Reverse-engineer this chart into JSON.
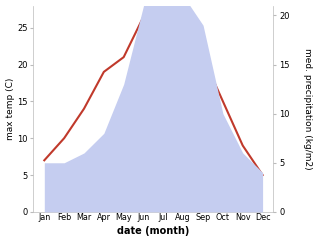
{
  "months": [
    "Jan",
    "Feb",
    "Mar",
    "Apr",
    "May",
    "Jun",
    "Jul",
    "Aug",
    "Sep",
    "Oct",
    "Nov",
    "Dec"
  ],
  "temp": [
    7,
    10,
    14,
    19,
    21,
    26.5,
    27,
    26,
    21,
    15,
    9,
    5
  ],
  "precip": [
    5,
    5,
    6,
    8,
    13,
    21,
    22,
    22,
    19,
    10,
    6,
    4
  ],
  "temp_color": "#c0392b",
  "precip_fill_color": "#c5cdf0",
  "ylabel_left": "max temp (C)",
  "ylabel_right": "med. precipitation (kg/m2)",
  "xlabel": "date (month)",
  "ylim_left": [
    0,
    28
  ],
  "ylim_right": [
    0,
    21
  ],
  "yticks_left": [
    0,
    5,
    10,
    15,
    20,
    25
  ],
  "yticks_right": [
    0,
    5,
    10,
    15,
    20
  ],
  "bg_color": "#ffffff",
  "temp_linewidth": 1.5,
  "label_fontsize": 6.5,
  "tick_fontsize": 6.0,
  "xlabel_fontsize": 7.0,
  "month_fontsize": 5.8
}
